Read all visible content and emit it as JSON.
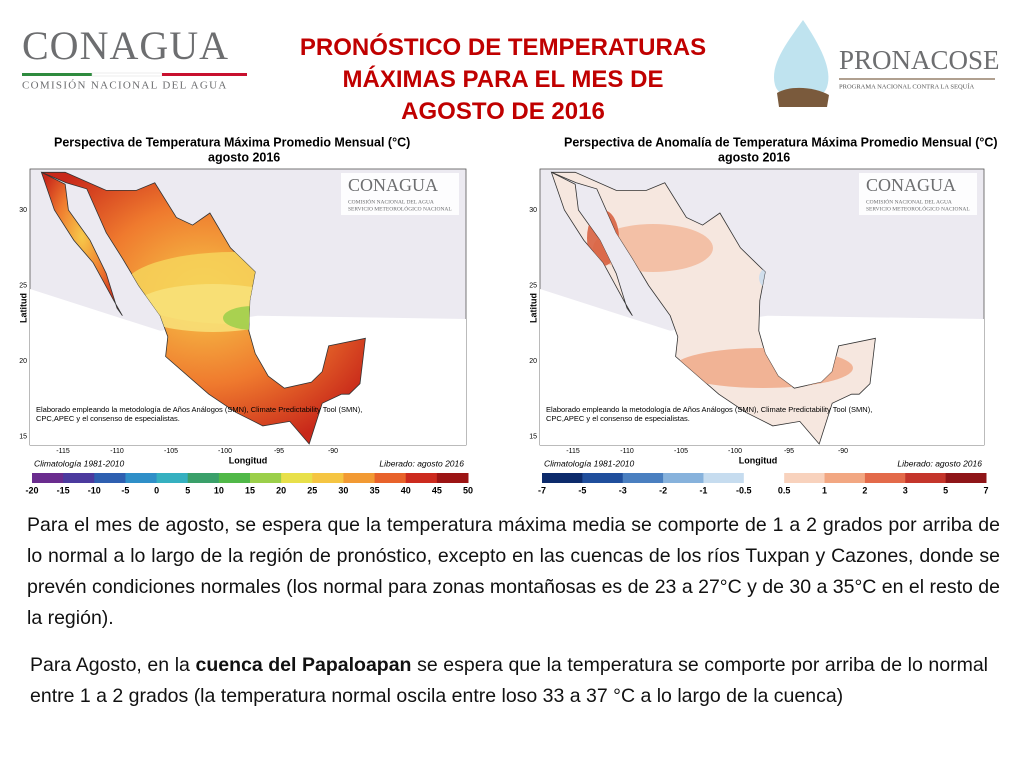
{
  "header": {
    "logo_left": {
      "name": "CONAGUA",
      "subtitle": "COMISIÓN NACIONAL DEL AGUA"
    },
    "title": [
      "PRONÓSTICO DE TEMPERATURAS",
      "MÁXIMAS PARA EL MES DE",
      "AGOSTO DE 2016"
    ],
    "logo_right": {
      "name": "PRONACOSE",
      "subtitle": "PROGRAMA NACIONAL CONTRA LA SEQUÍA"
    }
  },
  "maps": [
    {
      "title": "Perspectiva de Temperatura Máxima Promedio Mensual (°C)",
      "subtitle": "agosto 2016",
      "watermark": {
        "name": "CONAGUA",
        "lines": [
          "COMISIÓN NACIONAL DEL AGUA",
          "SERVICIO METEOROLÓGICO NACIONAL"
        ]
      },
      "y_label": "Latitud",
      "x_label": "Longitud",
      "y_ticks": [
        30,
        25,
        20,
        15
      ],
      "x_ticks": [
        -115,
        -110,
        -105,
        -100,
        -95,
        -90
      ],
      "note": [
        "Elaborado empleando la metodología de Años Análogos (SMN), Climate Predictability Tool (SMN),",
        "CPC,APEC y el consenso de especialistas."
      ],
      "climatology": "Climatología 1981-2010",
      "released": "Liberado: agosto 2016",
      "scale": [
        -20,
        -15,
        -10,
        -5,
        0,
        5,
        10,
        15,
        20,
        25,
        30,
        35,
        40,
        45,
        50
      ]
    },
    {
      "title": "Perspectiva de Anomalía de Temperatura Máxima Promedio Mensual (°C)",
      "subtitle": "agosto 2016",
      "watermark": {
        "name": "CONAGUA",
        "lines": [
          "COMISIÓN NACIONAL DEL AGUA",
          "SERVICIO METEOROLÓGICO NACIONAL"
        ]
      },
      "y_label": "Latitud",
      "x_label": "Longitud",
      "y_ticks": [
        30,
        25,
        20,
        15
      ],
      "x_ticks": [
        -115,
        -110,
        -105,
        -100,
        -95,
        -90
      ],
      "note": [
        "Elaborado empleando la metodología de Años Análogos (SMN), Climate Predictability Tool (SMN),",
        "CPC,APEC y el consenso de especialistas."
      ],
      "climatology": "Climatología 1981-2010",
      "released": "Liberado: agosto 2016",
      "scale": [
        -7,
        -5,
        -3,
        -2,
        -1,
        -0.5,
        0.5,
        1,
        2,
        3,
        5,
        7
      ]
    }
  ],
  "paragraphs": [
    [
      "Para el mes de agosto, se espera que la temperatura máxima media se comporte de 1 a 2 grados por arriba de lo normal a lo largo de la región de pronóstico, excepto en las cuencas de los ríos Tuxpan y Cazones, donde se prevén condiciones normales (los normal para zonas montañosas es de 23 a 27°C y de 30 a 35°C en el resto de la región)."
    ],
    [
      "Para Agosto, en la ",
      "cuenca del Papaloapan",
      " se espera que la temperatura se comporte por arriba de lo normal entre 1 a 2 grados (la temperatura normal oscila entre loso 33 a 37 °C a lo largo de la cuenca)"
    ]
  ]
}
